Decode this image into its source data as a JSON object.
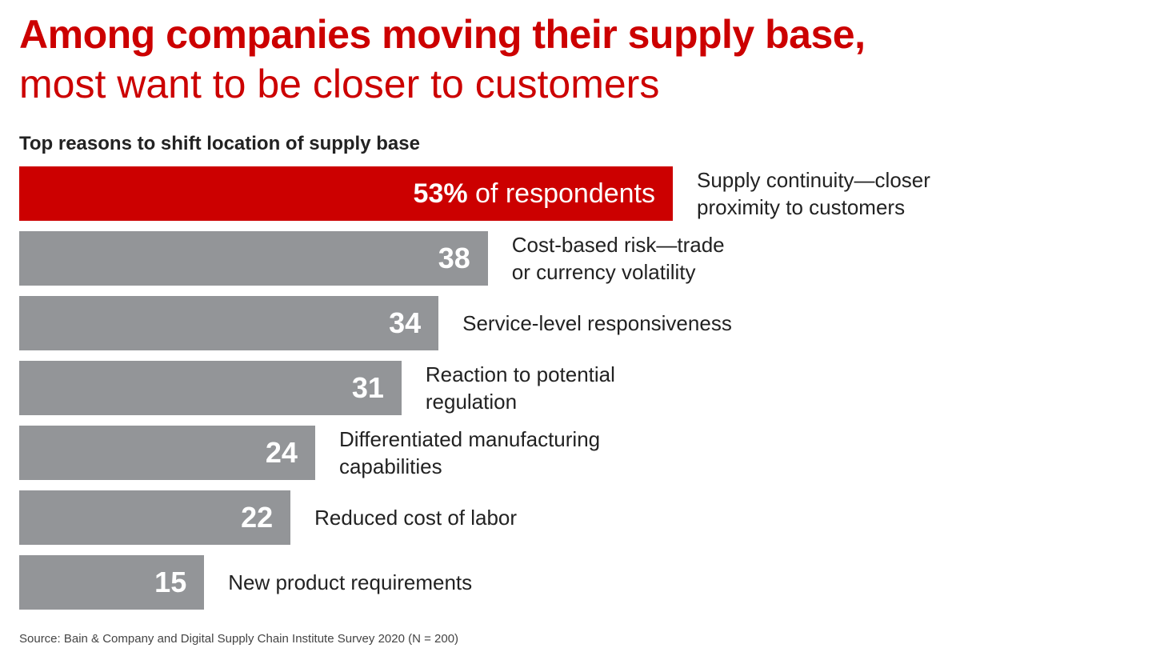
{
  "title_bold": "Among companies moving their supply base,",
  "title_light": "most want to be closer to customers",
  "source": "Source: Bain & Company and Digital Supply Chain Institute Survey 2020 (N = 200)",
  "colors": {
    "highlight": "#cc0000",
    "bar": "#939598",
    "text": "#222222"
  },
  "chart_data": {
    "type": "bar",
    "orientation": "horizontal",
    "title": "Top reasons to shift location of supply base",
    "categories": [
      "Supply continuity—closer\nproximity to customers",
      "Cost-based risk—trade\nor currency volatility",
      "Service-level responsiveness",
      "Reaction to potential\nregulation",
      "Differentiated manufacturing\ncapabilities",
      "Reduced cost of labor",
      "New product requirements"
    ],
    "values": [
      53,
      38,
      34,
      31,
      24,
      22,
      15
    ],
    "value_labels": [
      "53%",
      "38",
      "34",
      "31",
      "24",
      "22",
      "15"
    ],
    "first_value_suffix": " of respondents",
    "highlight_index": 0,
    "xlim": [
      0,
      53
    ],
    "grid": false,
    "legend": "none"
  }
}
